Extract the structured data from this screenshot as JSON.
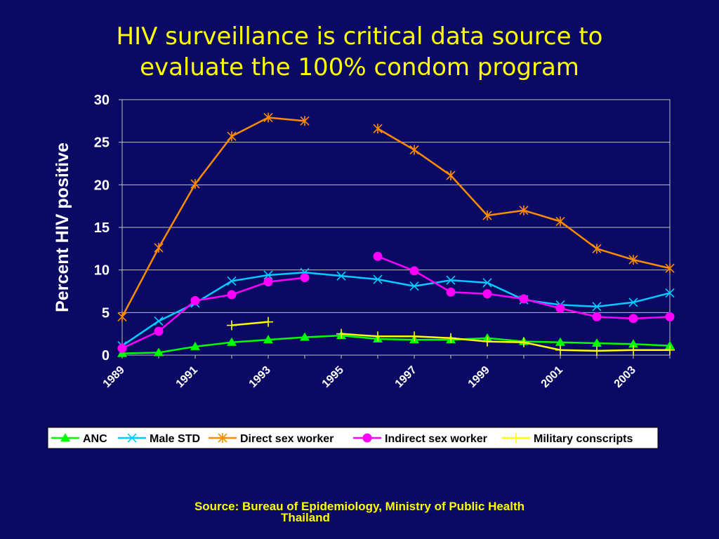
{
  "slide": {
    "title_line1": "HIV surveillance is critical data source to",
    "title_line2": "evaluate the 100% condom program",
    "source_line1": "Source: Bureau of Epidemiology, Ministry of Public Health",
    "source_line2": "Thailand"
  },
  "colors": {
    "background": "#0a0a64",
    "title": "#ffff00",
    "plot_border": "#c0c0c0",
    "gridline": "#c0c0c0",
    "axis_text": "#ffffff"
  },
  "chart_data": {
    "type": "line",
    "title": "",
    "xlabel": "",
    "ylabel": "Percent HIV positive",
    "x": [
      1989,
      1990,
      1991,
      1992,
      1993,
      1994,
      1995,
      1996,
      1997,
      1998,
      1999,
      2000,
      2001,
      2002,
      2003,
      2004
    ],
    "x_tick_labels": [
      "1989",
      "1991",
      "1993",
      "1995",
      "1997",
      "1999",
      "2001",
      "2003"
    ],
    "ylim": [
      0,
      30
    ],
    "y_ticks": [
      0,
      5,
      10,
      15,
      20,
      25,
      30
    ],
    "grid": "horizontal",
    "legend_position": "bottom",
    "series": [
      {
        "name": "ANC",
        "color": "#00ff00",
        "marker": "triangle",
        "values": [
          0.2,
          0.3,
          1.0,
          1.5,
          1.8,
          2.1,
          2.3,
          1.9,
          1.8,
          1.8,
          2.0,
          1.6,
          1.5,
          1.4,
          1.3,
          1.1
        ]
      },
      {
        "name": "Male STD",
        "color": "#00ccff",
        "marker": "x",
        "values": [
          1.1,
          4.0,
          6.1,
          8.7,
          9.4,
          9.7,
          9.3,
          8.9,
          8.1,
          8.8,
          8.5,
          6.5,
          5.9,
          5.7,
          6.2,
          7.3
        ]
      },
      {
        "name": "Direct sex worker",
        "color": "#ff8c00",
        "marker": "asterisk",
        "values": [
          4.5,
          12.6,
          20.1,
          25.7,
          27.9,
          27.5,
          null,
          26.6,
          24.1,
          21.1,
          16.4,
          17.0,
          15.7,
          12.5,
          11.2,
          10.2
        ]
      },
      {
        "name": "Indirect sex worker",
        "color": "#ff00ff",
        "marker": "circle",
        "values": [
          0.8,
          2.8,
          6.4,
          7.1,
          8.6,
          9.1,
          null,
          11.6,
          9.9,
          7.4,
          7.2,
          6.6,
          5.5,
          4.5,
          4.3,
          4.5
        ]
      },
      {
        "name": "Military conscripts",
        "color": "#ffff00",
        "marker": "plus",
        "values": [
          null,
          null,
          null,
          3.5,
          3.9,
          null,
          2.5,
          2.2,
          2.2,
          2.0,
          1.6,
          1.5,
          0.6,
          0.5,
          0.6,
          0.6
        ]
      }
    ]
  }
}
